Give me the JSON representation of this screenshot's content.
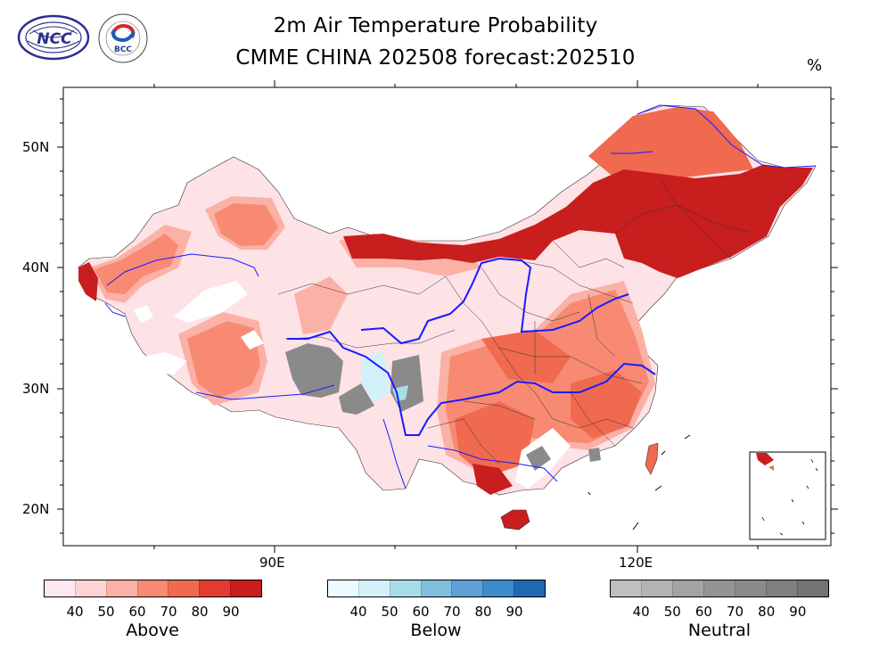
{
  "header": {
    "title_line1": "2m Air Temperature Probability",
    "title_line2": "CMME CHINA 202508 forecast:202510",
    "unit": "%"
  },
  "logos": {
    "ncc": {
      "text": "NCC",
      "alt": "中国"
    },
    "bcc": {
      "text": "BCC",
      "ring": "BEIJING CLIMATE CENTER"
    }
  },
  "axes": {
    "lat_labels": [
      "50N",
      "40N",
      "30N",
      "20N"
    ],
    "lon_labels": [
      "90E",
      "120E"
    ]
  },
  "colorbars": [
    {
      "name": "Above",
      "ticks": [
        "40",
        "50",
        "60",
        "70",
        "80",
        "90"
      ],
      "colors": [
        "#fde9f0",
        "#fcd4d4",
        "#fbb1a6",
        "#f88a73",
        "#f06a50",
        "#e03c32",
        "#c81e1e"
      ]
    },
    {
      "name": "Below",
      "ticks": [
        "40",
        "50",
        "60",
        "70",
        "80",
        "90"
      ],
      "colors": [
        "#ecfbff",
        "#d2f1f9",
        "#a8dde8",
        "#7fbfdc",
        "#5fa1d6",
        "#3c8bca",
        "#1f6ab0"
      ]
    },
    {
      "name": "Neutral",
      "ticks": [
        "40",
        "50",
        "60",
        "70",
        "80",
        "90"
      ],
      "colors": [
        "#bfbfbf",
        "#b3b3b3",
        "#a3a3a3",
        "#949494",
        "#8a8a8a",
        "#7f7f7f",
        "#737373"
      ]
    }
  ]
}
